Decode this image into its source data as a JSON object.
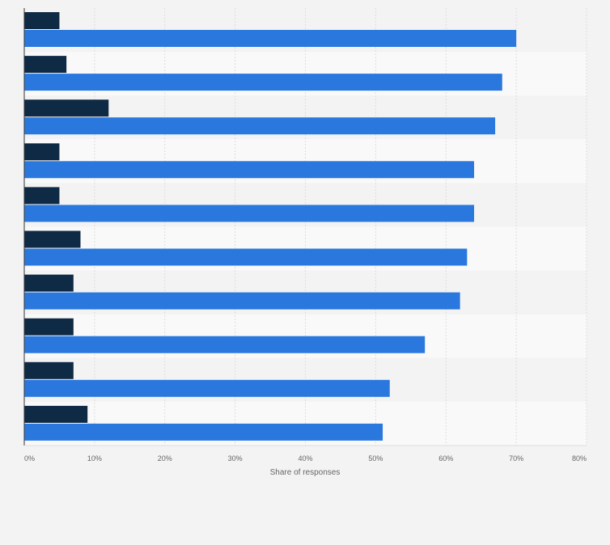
{
  "chart_data": {
    "type": "bar",
    "orientation": "horizontal",
    "title": "",
    "xlabel": "Share of responses",
    "ylabel": "",
    "xlim": [
      0,
      80
    ],
    "x_ticks": [
      "0%",
      "10%",
      "20%",
      "30%",
      "40%",
      "50%",
      "60%",
      "70%",
      "80%"
    ],
    "categories": [
      "",
      "",
      "",
      "",
      "",
      "",
      "",
      "",
      "",
      ""
    ],
    "series": [
      {
        "name": "",
        "color": "#0f2a45",
        "values": [
          5,
          6,
          12,
          5,
          5,
          8,
          7,
          7,
          7,
          9
        ]
      },
      {
        "name": "",
        "color": "#2a78de",
        "values": [
          70,
          68,
          67,
          64,
          64,
          63,
          62,
          57,
          52,
          51
        ]
      }
    ],
    "grid": true,
    "legend": "none"
  }
}
